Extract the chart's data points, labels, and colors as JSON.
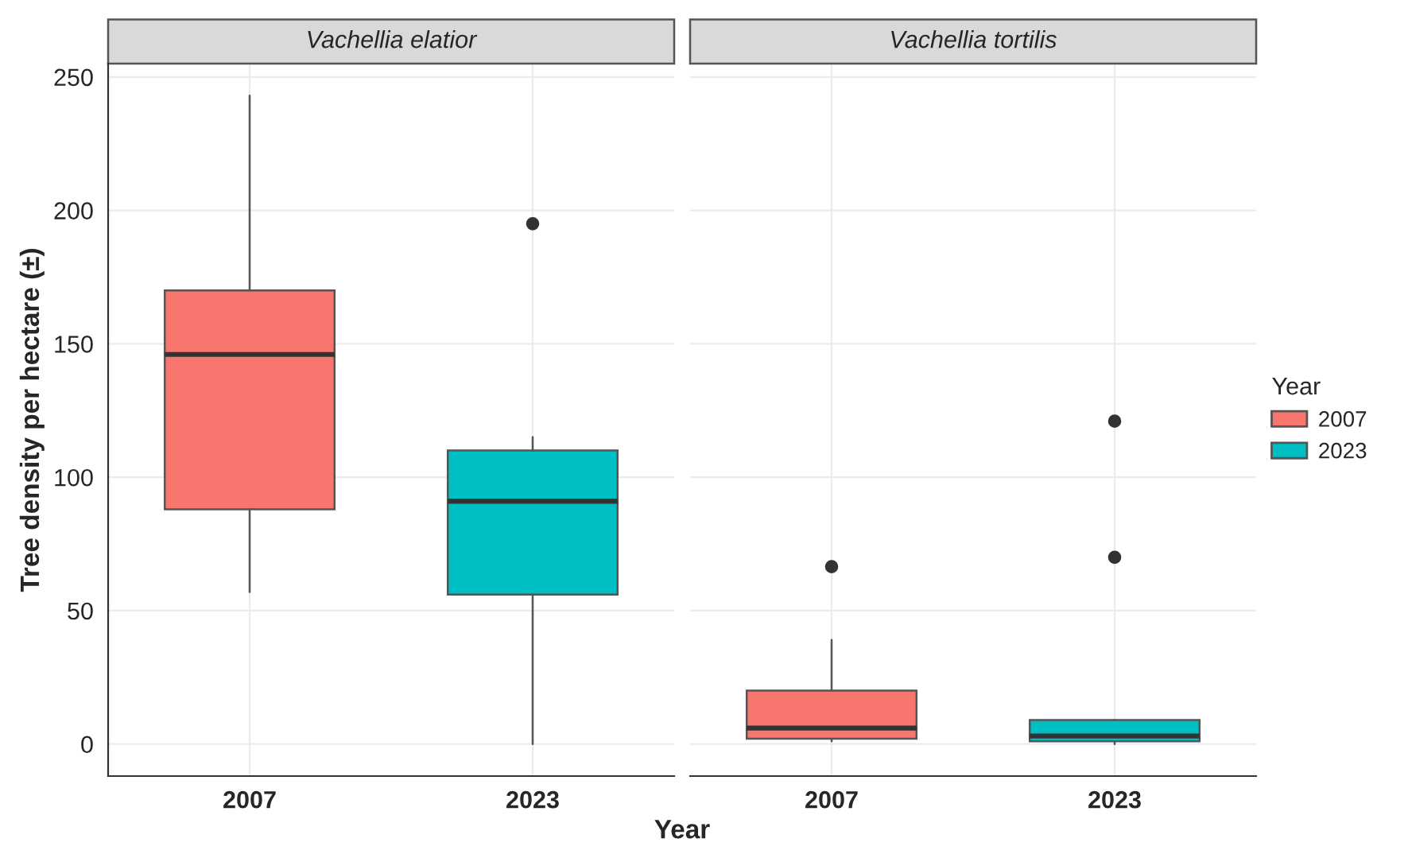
{
  "chart_data": [
    {
      "type": "box",
      "title": "Vachellia elatior",
      "ylabel": "Tree density per hectare (±)",
      "xlabel": "Year",
      "categories": [
        "2007",
        "2023"
      ],
      "series": [
        {
          "name": "2007",
          "color": "#f8766d",
          "boxes": [
            {
              "low": 57,
              "q1": 88,
              "median": 146,
              "q3": 170,
              "high": 243
            },
            null
          ]
        },
        {
          "name": "2023",
          "color": "#00bfc4",
          "boxes": [
            null,
            {
              "low": 0,
              "q1": 56,
              "median": 91,
              "q3": 110,
              "high": 115,
              "outliers": [
                195
              ]
            }
          ]
        }
      ],
      "ylim": [
        -12,
        255
      ],
      "yticks": [
        0,
        50,
        100,
        150,
        200,
        250
      ],
      "grid": true,
      "legend": "right",
      "legend_title": "Year"
    },
    {
      "type": "box",
      "title": "Vachellia tortilis",
      "categories": [
        "2007",
        "2023"
      ],
      "series": [
        {
          "name": "2007",
          "color": "#f8766d",
          "boxes": [
            {
              "low": 1,
              "q1": 2,
              "median": 6,
              "q3": 20,
              "high": 39,
              "outliers": [
                66.5
              ]
            },
            null
          ]
        },
        {
          "name": "2023",
          "color": "#00bfc4",
          "boxes": [
            null,
            {
              "low": 0,
              "q1": 1,
              "median": 3,
              "q3": 9,
              "high": 9,
              "outliers": [
                70,
                121
              ]
            }
          ]
        }
      ],
      "ylim": [
        -12,
        255
      ],
      "yticks": [
        0,
        50,
        100,
        150,
        200,
        250
      ],
      "grid": true,
      "tick_labels": "x"
    }
  ]
}
